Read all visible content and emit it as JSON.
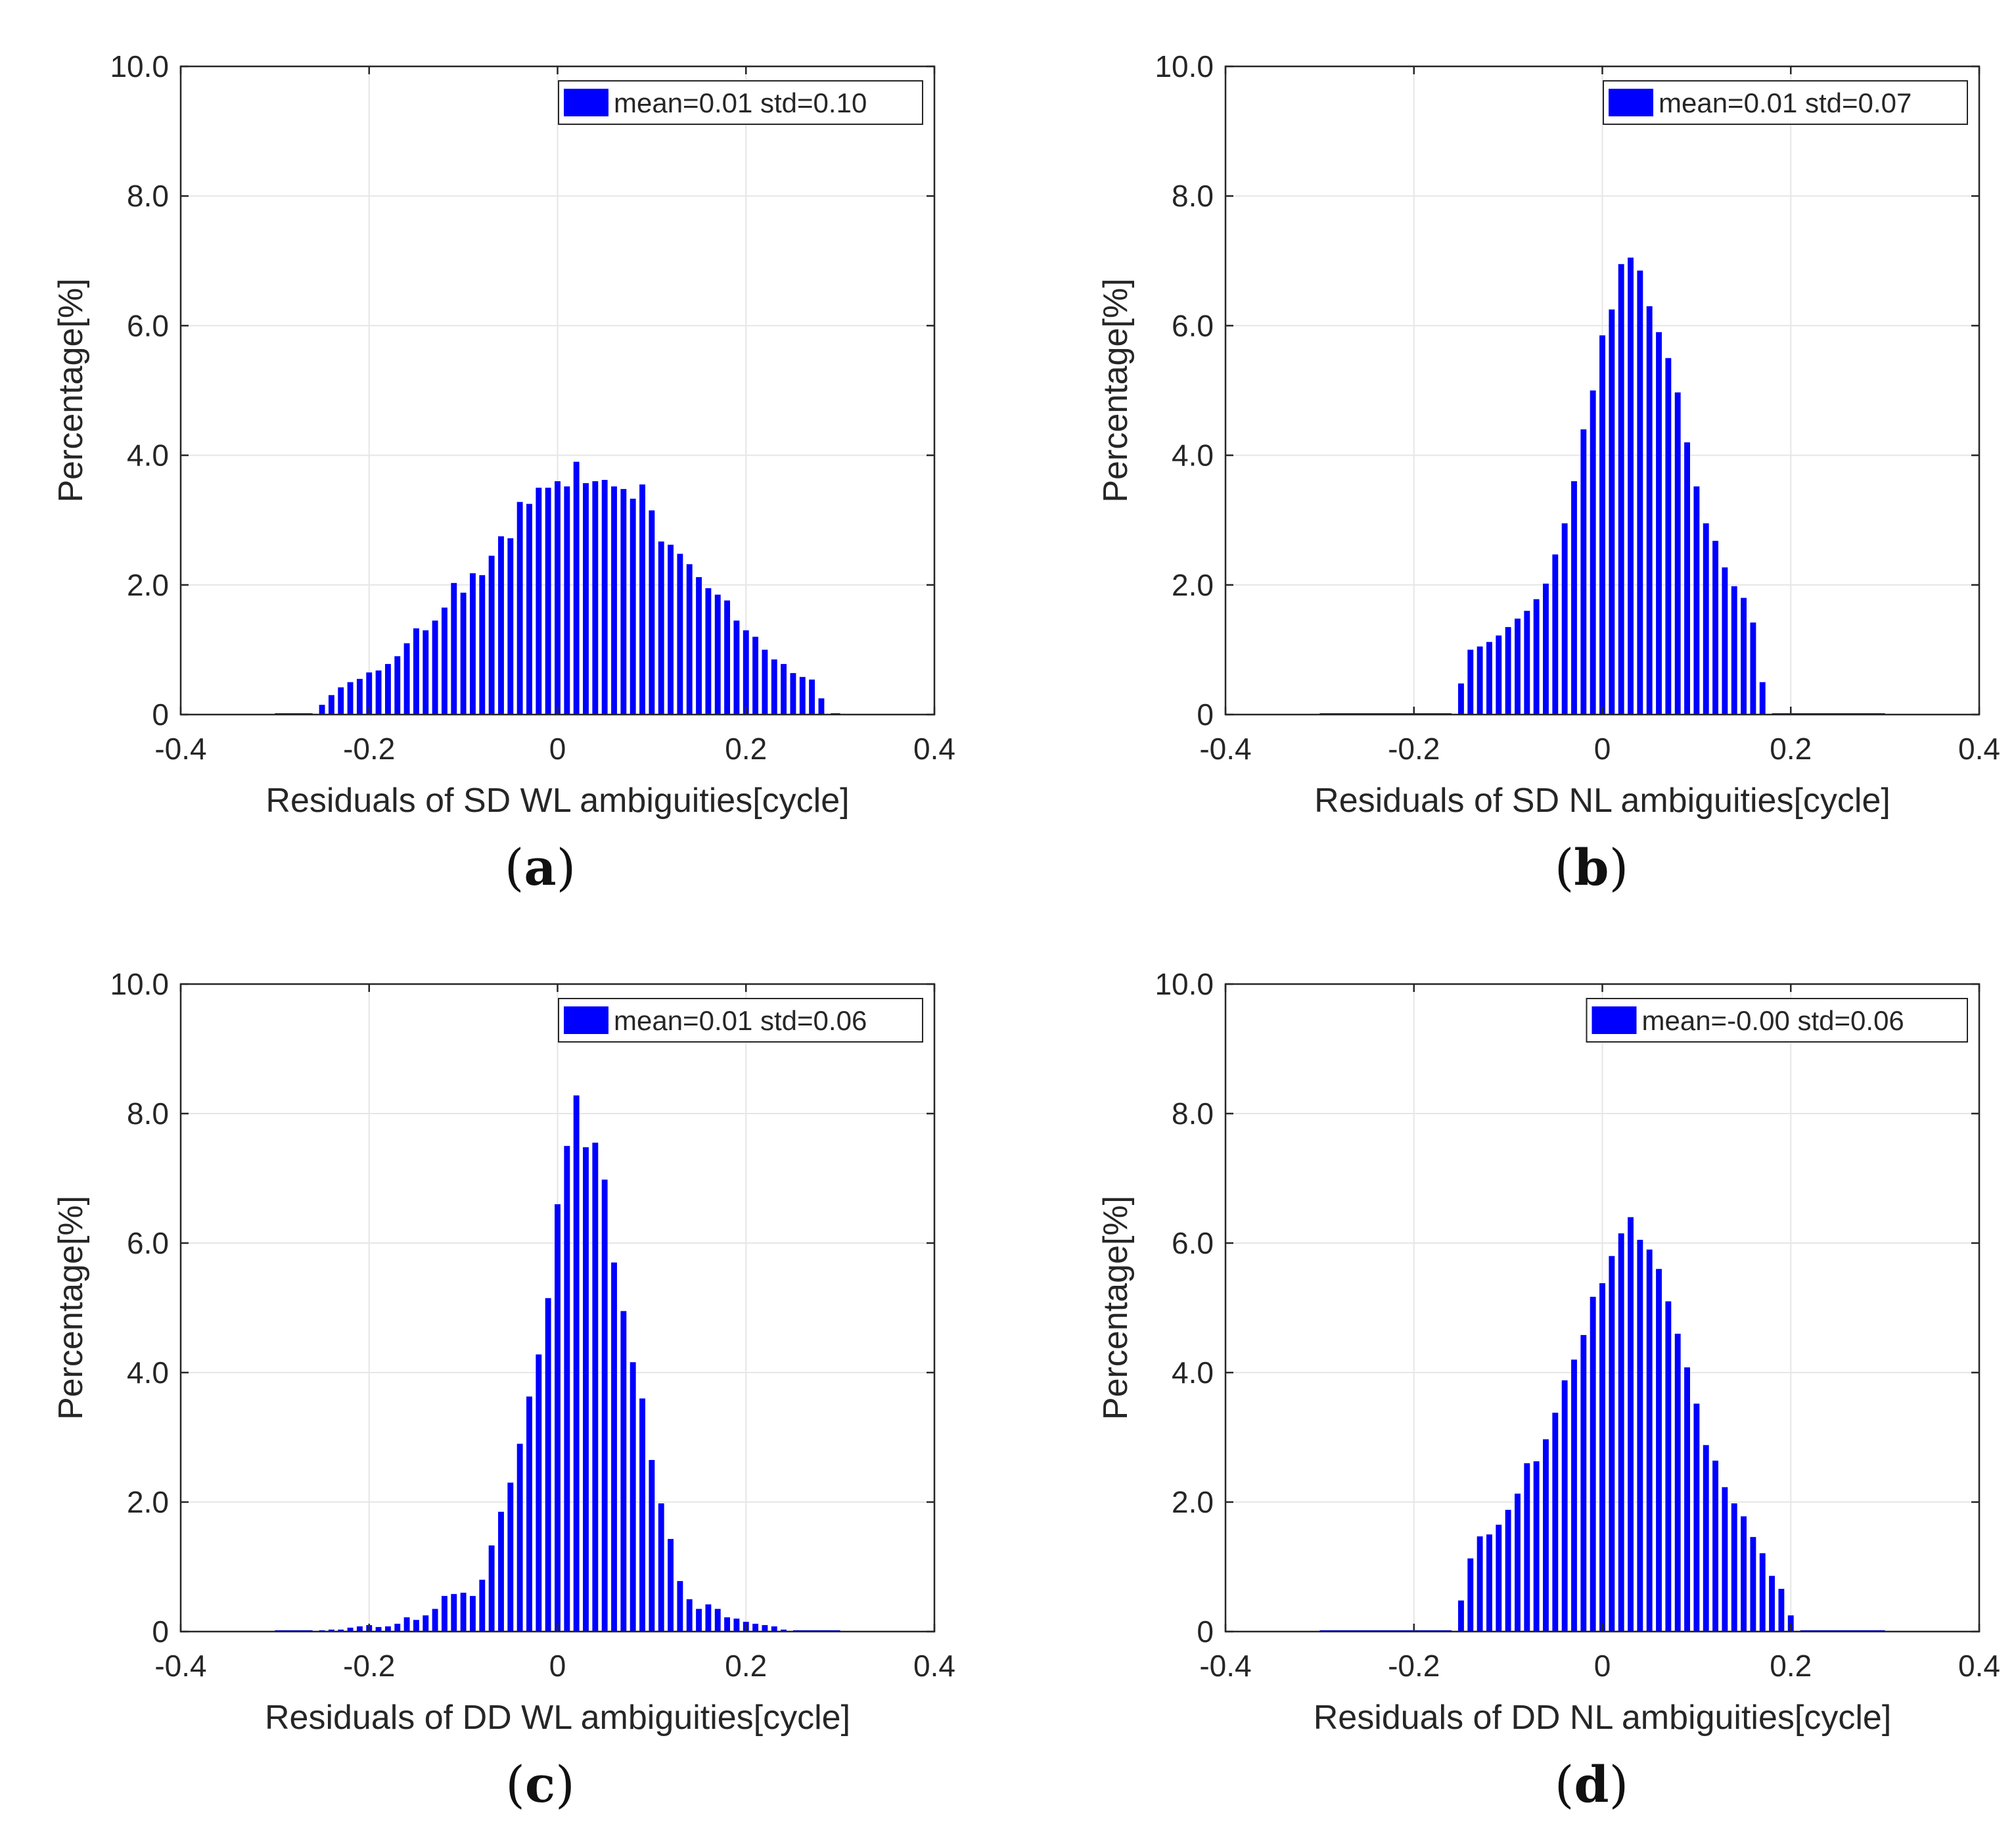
{
  "colors": {
    "bar": "#0000ff",
    "axis": "#262626",
    "grid": "#e6e6e6",
    "legend_border": "#262626"
  },
  "chart_data": [
    {
      "id": "a",
      "type": "bar",
      "caption_letter": "a",
      "xlabel": "Residuals of SD WL ambiguities[cycle]",
      "ylabel": "Percentage[%]",
      "xlim": [
        -0.4,
        0.4
      ],
      "ylim": [
        0,
        10
      ],
      "xticks": [
        "-0.4",
        "-0.2",
        "0",
        "0.2",
        "0.4"
      ],
      "yticks": [
        "0",
        "2.0",
        "4.0",
        "6.0",
        "8.0",
        "10.0"
      ],
      "grid": true,
      "legend_position": "top-right",
      "legend": "mean=0.01 std=0.10",
      "bin_start": -0.25,
      "bin_width": 0.01,
      "values": [
        0.15,
        0.3,
        0.42,
        0.5,
        0.55,
        0.65,
        0.68,
        0.78,
        0.9,
        1.1,
        1.33,
        1.3,
        1.45,
        1.65,
        2.03,
        1.88,
        2.18,
        2.15,
        2.45,
        2.75,
        2.72,
        3.28,
        3.25,
        3.5,
        3.5,
        3.6,
        3.52,
        3.9,
        3.57,
        3.6,
        3.62,
        3.52,
        3.48,
        3.33,
        3.55,
        3.15,
        2.67,
        2.62,
        2.48,
        2.32,
        2.12,
        1.95,
        1.85,
        1.76,
        1.45,
        1.3,
        1.2,
        1.0,
        0.85,
        0.78,
        0.64,
        0.58,
        0.54,
        0.25
      ]
    },
    {
      "id": "b",
      "type": "bar",
      "caption_letter": "b",
      "xlabel": "Residuals of SD NL ambiguities[cycle]",
      "ylabel": "Percentage[%]",
      "xlim": [
        -0.4,
        0.4
      ],
      "ylim": [
        0,
        10
      ],
      "xticks": [
        "-0.4",
        "-0.2",
        "0",
        "0.2",
        "0.4"
      ],
      "yticks": [
        "0",
        "2.0",
        "4.0",
        "6.0",
        "8.0",
        "10.0"
      ],
      "grid": true,
      "legend_position": "top-right",
      "legend": "mean=0.01 std=0.07",
      "bin_start": -0.15,
      "bin_width": 0.01,
      "values": [
        0.48,
        1.0,
        1.05,
        1.12,
        1.22,
        1.35,
        1.48,
        1.6,
        1.78,
        2.02,
        2.47,
        2.95,
        3.6,
        4.4,
        5.0,
        5.85,
        6.25,
        6.95,
        7.05,
        6.85,
        6.3,
        5.9,
        5.5,
        4.97,
        4.2,
        3.52,
        2.95,
        2.68,
        2.27,
        1.98,
        1.8,
        1.42,
        0.5
      ]
    },
    {
      "id": "c",
      "type": "bar",
      "caption_letter": "c",
      "xlabel": "Residuals of DD WL ambiguities[cycle]",
      "ylabel": "Percentage[%]",
      "xlim": [
        -0.4,
        0.4
      ],
      "ylim": [
        0,
        10
      ],
      "xticks": [
        "-0.4",
        "-0.2",
        "0",
        "0.2",
        "0.4"
      ],
      "yticks": [
        "0",
        "2.0",
        "4.0",
        "6.0",
        "8.0",
        "10.0"
      ],
      "grid": true,
      "legend_position": "top-right",
      "legend": "mean=0.01 std=0.06",
      "bin_start": -0.25,
      "bin_width": 0.01,
      "values": [
        0.02,
        0.03,
        0.03,
        0.06,
        0.08,
        0.1,
        0.07,
        0.08,
        0.12,
        0.22,
        0.18,
        0.25,
        0.35,
        0.55,
        0.58,
        0.6,
        0.55,
        0.8,
        1.33,
        1.85,
        2.3,
        2.9,
        3.63,
        4.28,
        5.15,
        6.6,
        7.5,
        8.28,
        7.48,
        7.55,
        6.98,
        5.7,
        4.95,
        4.16,
        3.6,
        2.65,
        1.98,
        1.43,
        0.78,
        0.5,
        0.35,
        0.42,
        0.35,
        0.22,
        0.2,
        0.15,
        0.12,
        0.1,
        0.08,
        0.03
      ]
    },
    {
      "id": "d",
      "type": "bar",
      "caption_letter": "d",
      "xlabel": "Residuals of DD NL ambiguities[cycle]",
      "ylabel": "Percentage[%]",
      "xlim": [
        -0.4,
        0.4
      ],
      "ylim": [
        0,
        10
      ],
      "xticks": [
        "-0.4",
        "-0.2",
        "0",
        "0.2",
        "0.4"
      ],
      "yticks": [
        "0",
        "2.0",
        "4.0",
        "6.0",
        "8.0",
        "10.0"
      ],
      "grid": true,
      "legend_position": "top-right",
      "legend": "mean=-0.00 std=0.06",
      "bin_start": -0.15,
      "bin_width": 0.01,
      "values": [
        0.48,
        1.13,
        1.47,
        1.5,
        1.65,
        1.88,
        2.13,
        2.6,
        2.63,
        2.97,
        3.38,
        3.88,
        4.2,
        4.58,
        5.17,
        5.38,
        5.8,
        6.15,
        6.4,
        6.05,
        5.9,
        5.6,
        5.1,
        4.6,
        4.08,
        3.52,
        2.88,
        2.64,
        2.23,
        1.98,
        1.78,
        1.46,
        1.21,
        0.86,
        0.66,
        0.25
      ]
    }
  ]
}
